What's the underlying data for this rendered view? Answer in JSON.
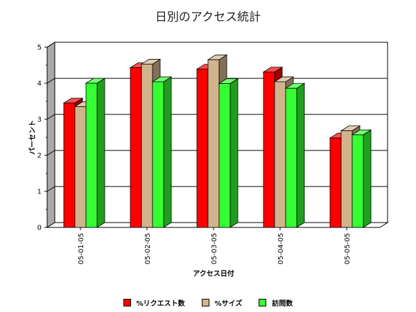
{
  "chart_data": {
    "type": "bar",
    "title": "日別のアクセス統計",
    "xlabel": "アクセス日付",
    "ylabel": "パーセント",
    "ylim": [
      0,
      5
    ],
    "yticks": [
      0,
      1,
      2,
      3,
      4,
      5
    ],
    "grid": true,
    "legend_position": "bottom",
    "categories": [
      "05-01-05",
      "05-02-05",
      "05-03-05",
      "05-04-05",
      "05-05-05"
    ],
    "series": [
      {
        "name": "%リクエスト数",
        "color": "#ff0000",
        "values": [
          3.45,
          4.43,
          4.39,
          4.31,
          2.48
        ]
      },
      {
        "name": "%サイズ",
        "color": "#d2b48c",
        "values": [
          3.35,
          4.53,
          4.65,
          4.04,
          2.68
        ]
      },
      {
        "name": "訪問数",
        "color": "#33ff33",
        "values": [
          4.0,
          4.04,
          3.99,
          3.86,
          2.57
        ]
      }
    ]
  }
}
